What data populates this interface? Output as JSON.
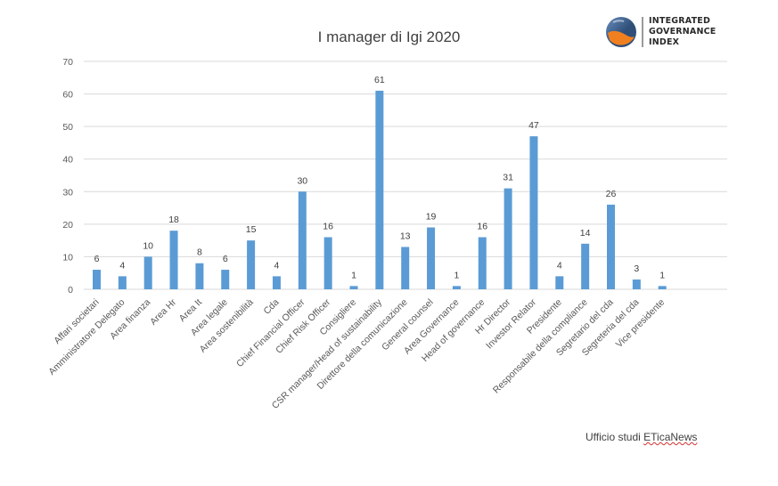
{
  "page": {
    "logo_lines": [
      "INTEGRATED",
      "GOVERNANCE",
      "INDEX"
    ],
    "footer_prefix": "Ufficio studi ",
    "footer_brand": "ETicaNews"
  },
  "colors": {
    "bar": "#5b9bd5",
    "grid": "#d9d9d9"
  },
  "chart_data": {
    "type": "bar",
    "title": "I manager di Igi 2020",
    "xlabel": "",
    "ylabel": "",
    "ylim": [
      0,
      70
    ],
    "yticks": [
      0,
      10,
      20,
      30,
      40,
      50,
      60,
      70
    ],
    "grid": true,
    "legend": "none",
    "data_labels": true,
    "categories": [
      "Affari societari",
      "Amministratore Delegato",
      "Area finanza",
      "Area Hr",
      "Area It",
      "Area legale",
      "Area sostenibilità",
      "Cda",
      "Chief Financial Officer",
      "Chief Risk Officer",
      "Consigliere",
      "CSR manager/Head of sustainability",
      "Direttore della comunicazione",
      "General counsel",
      "Area Governance",
      "Head of governance",
      "Hr Director",
      "Investor Relator",
      "Presidente",
      "Responsabile della compliance",
      "Segretario del cda",
      "Segreteria del cda",
      "Vice presidente"
    ],
    "values": [
      6,
      4,
      10,
      18,
      8,
      6,
      15,
      4,
      30,
      16,
      1,
      61,
      13,
      19,
      1,
      16,
      31,
      47,
      4,
      14,
      26,
      3,
      1
    ]
  }
}
